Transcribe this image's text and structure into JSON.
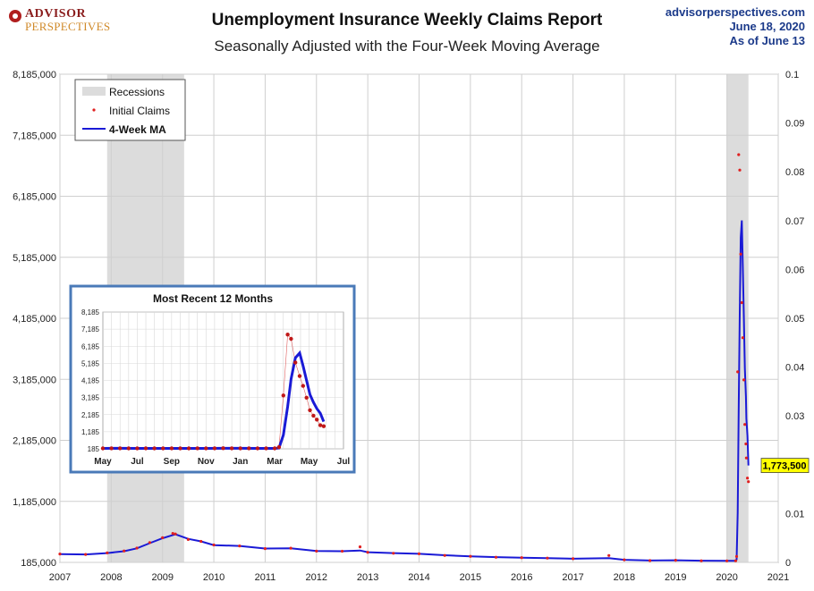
{
  "brand": {
    "line1": "ADVISOR",
    "line2": "PERSPECTIVES"
  },
  "header": {
    "title": "Unemployment Insurance Weekly Claims Report",
    "subtitle": "Seasonally Adjusted with the Four-Week Moving Average",
    "site": "advisorperspectives.com",
    "date": "June 18, 2020",
    "asof": "As of June 13"
  },
  "colors": {
    "claims": "#e02020",
    "ma": "#1a1ad6",
    "recession": "#dcdcdc",
    "insetBorder": "#4a7ab8",
    "callout": "#ffff00"
  },
  "chart_data": [
    {
      "type": "line",
      "title": "Unemployment Insurance Weekly Claims Report",
      "subtitle": "Seasonally Adjusted with the Four-Week Moving Average",
      "xlim": [
        2007,
        2021
      ],
      "x_ticks": [
        "2007",
        "2008",
        "2009",
        "2010",
        "2011",
        "2012",
        "2013",
        "2014",
        "2015",
        "2016",
        "2017",
        "2018",
        "2019",
        "2020",
        "2021"
      ],
      "ylim": [
        185000,
        8185000
      ],
      "y_ticks": [
        "185,000",
        "1,185,000",
        "2,185,000",
        "3,185,000",
        "4,185,000",
        "5,185,000",
        "6,185,000",
        "7,185,000",
        "8,185,000"
      ],
      "y2_ticks": [
        "0",
        "0.01",
        "0.02",
        "0.03",
        "0.04",
        "0.05",
        "0.06",
        "0.07",
        "0.08",
        "0.09",
        "0.1"
      ],
      "grid": true,
      "legend": {
        "position": "top-left",
        "entries": [
          "Recessions",
          "Initial Claims",
          "4-Week MA"
        ]
      },
      "recessions": [
        [
          2007.92,
          2009.42
        ],
        [
          2020.0,
          2020.42
        ]
      ],
      "latest_label": "1,773,500",
      "series": [
        {
          "name": "Initial Claims",
          "style": "dots",
          "points": [
            [
              2007.0,
              322000
            ],
            [
              2007.5,
              315000
            ],
            [
              2007.92,
              340000
            ],
            [
              2008.25,
              372000
            ],
            [
              2008.5,
              420000
            ],
            [
              2008.75,
              510000
            ],
            [
              2009.0,
              590000
            ],
            [
              2009.2,
              660000
            ],
            [
              2009.25,
              651000
            ],
            [
              2009.5,
              560000
            ],
            [
              2009.75,
              530000
            ],
            [
              2010.0,
              470000
            ],
            [
              2010.5,
              455000
            ],
            [
              2011.0,
              410000
            ],
            [
              2011.5,
              418000
            ],
            [
              2012.0,
              370000
            ],
            [
              2012.5,
              368000
            ],
            [
              2012.85,
              440000
            ],
            [
              2013.0,
              350000
            ],
            [
              2013.5,
              335000
            ],
            [
              2014.0,
              325000
            ],
            [
              2014.5,
              300000
            ],
            [
              2015.0,
              285000
            ],
            [
              2015.5,
              270000
            ],
            [
              2016.0,
              262000
            ],
            [
              2016.5,
              255000
            ],
            [
              2017.0,
              245000
            ],
            [
              2017.7,
              298000
            ],
            [
              2018.0,
              228000
            ],
            [
              2018.5,
              215000
            ],
            [
              2019.0,
              220000
            ],
            [
              2019.5,
              212000
            ],
            [
              2020.0,
              210000
            ],
            [
              2020.17,
              211000
            ],
            [
              2020.19,
              282000
            ],
            [
              2020.21,
              3307000
            ],
            [
              2020.23,
              6867000
            ],
            [
              2020.25,
              6615000
            ],
            [
              2020.27,
              5237000
            ],
            [
              2020.29,
              4442000
            ],
            [
              2020.31,
              3867000
            ],
            [
              2020.33,
              3176000
            ],
            [
              2020.35,
              2446000
            ],
            [
              2020.37,
              2126000
            ],
            [
              2020.38,
              1897000
            ],
            [
              2020.4,
              1566000
            ],
            [
              2020.42,
              1508000
            ]
          ]
        },
        {
          "name": "4-Week MA",
          "style": "line",
          "points": [
            [
              2007.0,
              320000
            ],
            [
              2007.5,
              316000
            ],
            [
              2007.92,
              338000
            ],
            [
              2008.25,
              368000
            ],
            [
              2008.5,
              415000
            ],
            [
              2008.75,
              500000
            ],
            [
              2009.0,
              580000
            ],
            [
              2009.25,
              645000
            ],
            [
              2009.5,
              570000
            ],
            [
              2009.75,
              530000
            ],
            [
              2010.0,
              468000
            ],
            [
              2010.5,
              455000
            ],
            [
              2011.0,
              412000
            ],
            [
              2011.5,
              415000
            ],
            [
              2012.0,
              372000
            ],
            [
              2012.5,
              368000
            ],
            [
              2012.85,
              380000
            ],
            [
              2013.0,
              352000
            ],
            [
              2013.5,
              338000
            ],
            [
              2014.0,
              325000
            ],
            [
              2014.5,
              302000
            ],
            [
              2015.0,
              285000
            ],
            [
              2015.5,
              272000
            ],
            [
              2016.0,
              262000
            ],
            [
              2016.5,
              256000
            ],
            [
              2017.0,
              245000
            ],
            [
              2017.7,
              255000
            ],
            [
              2018.0,
              228000
            ],
            [
              2018.5,
              216000
            ],
            [
              2019.0,
              220000
            ],
            [
              2019.5,
              213000
            ],
            [
              2020.0,
              212000
            ],
            [
              2020.17,
              212000
            ],
            [
              2020.19,
              230000
            ],
            [
              2020.21,
              998000
            ],
            [
              2020.23,
              2665000
            ],
            [
              2020.25,
              4265000
            ],
            [
              2020.27,
              5508000
            ],
            [
              2020.29,
              5790000
            ],
            [
              2020.31,
              5040000
            ],
            [
              2020.33,
              4190000
            ],
            [
              2020.35,
              3365000
            ],
            [
              2020.37,
              2904000
            ],
            [
              2020.38,
              2540000
            ],
            [
              2020.4,
              2265000
            ],
            [
              2020.42,
              1773500
            ]
          ]
        }
      ]
    },
    {
      "type": "line",
      "title": "Most Recent 12 Months",
      "x_ticks": [
        "May",
        "Jul",
        "Sep",
        "Nov",
        "Jan",
        "Mar",
        "May",
        "Jul"
      ],
      "xlim": [
        0,
        14
      ],
      "ylim": [
        185,
        8185
      ],
      "y_ticks": [
        "185",
        "1,185",
        "2,185",
        "3,185",
        "4,185",
        "5,185",
        "6,185",
        "7,185",
        "8,185"
      ],
      "grid": true,
      "series": [
        {
          "name": "Initial Claims",
          "style": "dots",
          "points": [
            [
              0,
              212
            ],
            [
              0.5,
              215
            ],
            [
              1,
              218
            ],
            [
              1.5,
              211
            ],
            [
              2,
              209
            ],
            [
              2.5,
              216
            ],
            [
              3,
              213
            ],
            [
              3.5,
              210
            ],
            [
              4,
              214
            ],
            [
              4.5,
              212
            ],
            [
              5,
              213
            ],
            [
              5.5,
              216
            ],
            [
              6,
              210
            ],
            [
              6.5,
              216
            ],
            [
              7,
              220
            ],
            [
              7.5,
              214
            ],
            [
              8,
              212
            ],
            [
              8.5,
              215
            ],
            [
              9,
              213
            ],
            [
              9.5,
              211
            ],
            [
              10,
              212
            ],
            [
              10.25,
              282
            ],
            [
              10.5,
              3307
            ],
            [
              10.75,
              6867
            ],
            [
              10.95,
              6615
            ],
            [
              11.2,
              5237
            ],
            [
              11.45,
              4442
            ],
            [
              11.65,
              3867
            ],
            [
              11.85,
              3176
            ],
            [
              12.05,
              2446
            ],
            [
              12.25,
              2126
            ],
            [
              12.45,
              1897
            ],
            [
              12.65,
              1566
            ],
            [
              12.85,
              1508
            ]
          ]
        },
        {
          "name": "4-Week MA",
          "style": "line",
          "points": [
            [
              0,
              213
            ],
            [
              1,
              214
            ],
            [
              2,
              212
            ],
            [
              3,
              212
            ],
            [
              4,
              213
            ],
            [
              5,
              213
            ],
            [
              6,
              212
            ],
            [
              7,
              216
            ],
            [
              8,
              214
            ],
            [
              9,
              212
            ],
            [
              10,
              212
            ],
            [
              10.25,
              230
            ],
            [
              10.5,
              998
            ],
            [
              10.75,
              2665
            ],
            [
              10.95,
              4265
            ],
            [
              11.2,
              5508
            ],
            [
              11.45,
              5790
            ],
            [
              11.65,
              5040
            ],
            [
              11.85,
              4190
            ],
            [
              12.05,
              3365
            ],
            [
              12.25,
              2904
            ],
            [
              12.45,
              2540
            ],
            [
              12.65,
              2265
            ],
            [
              12.85,
              1773
            ]
          ]
        }
      ]
    }
  ]
}
